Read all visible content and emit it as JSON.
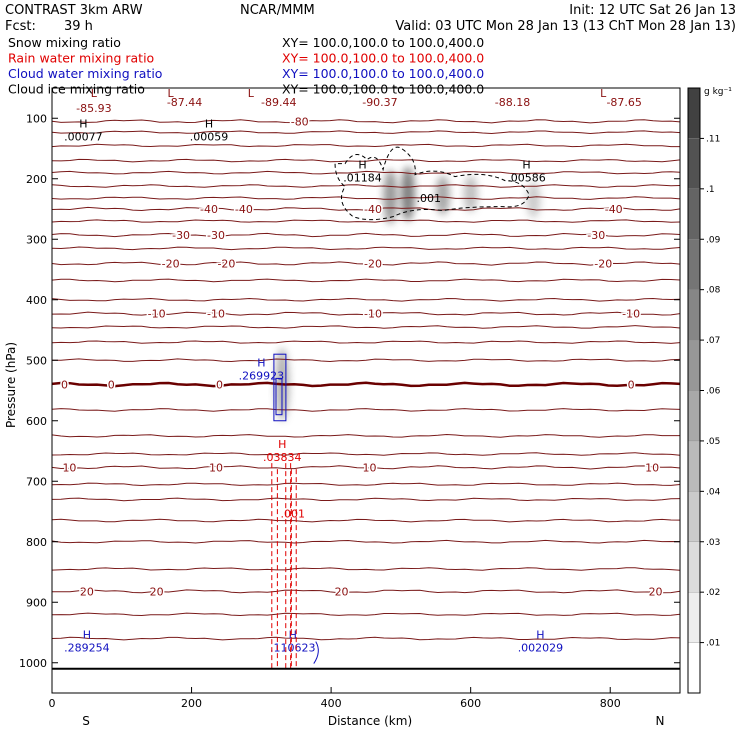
{
  "header": {
    "model": "CONTRAST  3km ARW",
    "center": "NCAR/MMM",
    "init": "Init: 12 UTC Sat 26 Jan 13",
    "fcst_label": "Fcst:",
    "fcst_value": "39 h",
    "valid": "Valid: 03 UTC Mon 28 Jan 13 (13 ChT Mon 28 Jan 13)"
  },
  "legend": [
    {
      "name": "Snow mixing ratio",
      "xy": "XY= 100.0,100.0 to 100.0,400.0",
      "color": "#000000"
    },
    {
      "name": "Rain water mixing ratio",
      "xy": "XY= 100.0,100.0 to 100.0,400.0",
      "color": "#e00000"
    },
    {
      "name": "Cloud water mixing ratio",
      "xy": "XY= 100.0,100.0 to 100.0,400.0",
      "color": "#1010c0"
    },
    {
      "name": "Cloud ice mixing ratio",
      "xy": "XY= 100.0,100.0 to 100.0,400.0",
      "color": "#000000"
    }
  ],
  "colorbar": {
    "unit": "g kg⁻¹",
    "ticks": [
      ".01",
      ".02",
      ".03",
      ".04",
      ".05",
      ".06",
      ".07",
      ".08",
      ".09",
      ".1",
      ".11"
    ],
    "levels": [
      0.01,
      0.02,
      0.03,
      0.04,
      0.05,
      0.06,
      0.07,
      0.08,
      0.09,
      0.1,
      0.11,
      0.12
    ]
  },
  "chart_data": {
    "type": "contour",
    "xlabel": "Distance (km)",
    "ylabel": "Pressure (hPa)",
    "x_ticks": [
      0,
      200,
      400,
      600,
      800
    ],
    "y_ticks": [
      100,
      200,
      300,
      400,
      500,
      600,
      700,
      800,
      900,
      1000
    ],
    "xlim": [
      0,
      900
    ],
    "ylim_hpa": [
      50,
      1050
    ],
    "compass_left": "S",
    "compass_right": "N",
    "temperature_contours": [
      {
        "level": -80,
        "label": "-80",
        "p": 105,
        "label_x": [
          355
        ]
      },
      {
        "level": -40,
        "label": "-40",
        "p": 250,
        "label_x": [
          225,
          275,
          460,
          805
        ]
      },
      {
        "level": -30,
        "label": "-30",
        "p": 293,
        "label_x": [
          185,
          235,
          780
        ]
      },
      {
        "level": -20,
        "label": "-20",
        "p": 340,
        "label_x": [
          170,
          250,
          460,
          790
        ]
      },
      {
        "level": -10,
        "label": "-10",
        "p": 423,
        "label_x": [
          150,
          235,
          460,
          830
        ]
      },
      {
        "level": 0,
        "label": "0",
        "p": 540,
        "label_x": [
          18,
          85,
          240,
          830
        ]
      },
      {
        "level": 10,
        "label": "10",
        "p": 677,
        "label_x": [
          25,
          235,
          455,
          860
        ]
      },
      {
        "level": 20,
        "label": "20",
        "p": 882,
        "label_x": [
          50,
          150,
          415,
          865
        ]
      }
    ],
    "temperature_extra_lines_hpa": [
      123,
      145,
      170,
      190,
      212,
      232,
      270,
      315,
      368,
      400,
      445,
      470,
      500,
      582,
      625,
      655,
      705,
      730,
      765,
      800,
      845,
      920,
      960
    ],
    "surface_hpa": 1010,
    "min_labels": [
      {
        "text": "L",
        "x": 60,
        "p": 65
      },
      {
        "text": "-85.93",
        "x": 60,
        "p": 90
      },
      {
        "text": "-87.44",
        "x": 190,
        "p": 80
      },
      {
        "text": "L",
        "x": 170,
        "p": 65
      },
      {
        "text": "L",
        "x": 285,
        "p": 65
      },
      {
        "text": "-89.44",
        "x": 325,
        "p": 80
      },
      {
        "text": "-90.37",
        "x": 470,
        "p": 80
      },
      {
        "text": "-88.18",
        "x": 660,
        "p": 80
      },
      {
        "text": "L",
        "x": 790,
        "p": 65
      },
      {
        "text": "-87.65",
        "x": 820,
        "p": 80
      }
    ],
    "cloud_ice_maxima": [
      {
        "label": "H",
        "value": ".00077",
        "x": 45,
        "p": 130
      },
      {
        "label": "H",
        "value": ".00059",
        "x": 225,
        "p": 130
      },
      {
        "label": "H",
        "value": ".01184",
        "x": 445,
        "p": 198
      },
      {
        "label": "",
        "value": ".001",
        "x": 540,
        "p": 232
      },
      {
        "label": "H",
        "value": ".00586",
        "x": 680,
        "p": 198
      }
    ],
    "snow_patches": [
      {
        "x": 485,
        "p1": 185,
        "p2": 275,
        "shade": 0.08
      },
      {
        "x": 510,
        "p1": 180,
        "p2": 270,
        "shade": 0.1
      },
      {
        "x": 560,
        "p1": 195,
        "p2": 260,
        "shade": 0.07
      },
      {
        "x": 600,
        "p1": 195,
        "p2": 255,
        "shade": 0.05
      },
      {
        "x": 690,
        "p1": 205,
        "p2": 265,
        "shade": 0.04
      },
      {
        "x": 330,
        "p1": 480,
        "p2": 600,
        "shade": 0.06
      }
    ],
    "cloud_water_maxima": [
      {
        "label": "H",
        "value": ".269923",
        "x": 300,
        "p": 525
      },
      {
        "label": "H",
        "value": ".289254",
        "x": 50,
        "p": 975
      },
      {
        "label": "H",
        "value": ".110623",
        "x": 345,
        "p": 975
      },
      {
        "label": "H",
        "value": ".002029",
        "x": 700,
        "p": 975
      }
    ],
    "rain_water_maxima": [
      {
        "label": "H",
        "value": ".03834",
        "x": 330,
        "p": 660
      },
      {
        "label": "",
        "value": ".001",
        "x": 345,
        "p": 753
      }
    ]
  }
}
